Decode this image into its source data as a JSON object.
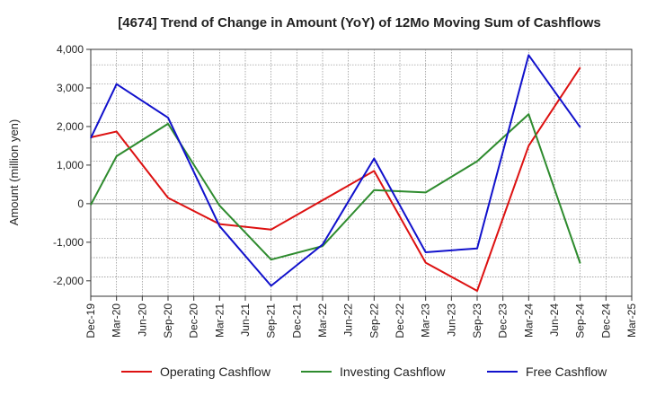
{
  "chart_data": {
    "type": "line",
    "title": "[4674]  Trend of Change in Amount (YoY) of 12Mo Moving Sum of Cashflows",
    "xlabel": "",
    "ylabel": "Amount (million yen)",
    "ylim": [
      -2400,
      4000
    ],
    "yticks": [
      4000,
      3000,
      2000,
      1000,
      0,
      -1000,
      -2000
    ],
    "ytick_labels": [
      "4,000",
      "3,000",
      "2,000",
      "1,000",
      "0",
      "-1,000",
      "-2,000"
    ],
    "grid": true,
    "legend_position": "bottom",
    "categories": [
      "Dec-19",
      "Mar-20",
      "Jun-20",
      "Sep-20",
      "Dec-20",
      "Mar-21",
      "Jun-21",
      "Sep-21",
      "Dec-21",
      "Mar-22",
      "Jun-22",
      "Sep-22",
      "Dec-22",
      "Mar-23",
      "Jun-23",
      "Sep-23",
      "Dec-23",
      "Mar-24",
      "Jun-24",
      "Sep-24",
      "Dec-24",
      "Mar-25"
    ],
    "series": [
      {
        "name": "Operating Cashflow",
        "color": "#dd1111",
        "values": [
          1720,
          1870,
          null,
          150,
          null,
          -530,
          null,
          -670,
          null,
          null,
          null,
          850,
          null,
          -1530,
          null,
          -2260,
          null,
          1500,
          null,
          3530,
          null,
          null
        ]
      },
      {
        "name": "Investing Cashflow",
        "color": "#2e8b2e",
        "values": [
          -30,
          1230,
          null,
          2070,
          null,
          -50,
          null,
          -1450,
          null,
          -1100,
          null,
          350,
          null,
          290,
          null,
          1100,
          null,
          2320,
          null,
          -1550,
          null,
          null
        ]
      },
      {
        "name": "Free Cashflow",
        "color": "#1111cc",
        "values": [
          1700,
          3100,
          null,
          2230,
          null,
          -580,
          null,
          -2130,
          null,
          -1060,
          null,
          1170,
          null,
          -1260,
          null,
          -1160,
          null,
          3850,
          null,
          1980,
          null,
          null
        ]
      }
    ]
  }
}
